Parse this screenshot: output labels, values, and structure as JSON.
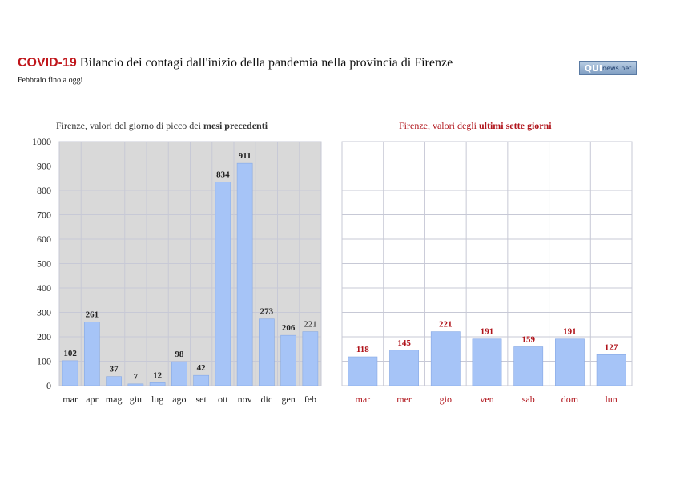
{
  "header": {
    "title_highlight": "COVID-19",
    "title_rest": "Bilancio dei contagi dall'inizio della pandemia nella provincia di Firenze",
    "subtitle": "Febbraio fino a oggi"
  },
  "logo": {
    "main": "QUI",
    "small": "news.net"
  },
  "colors": {
    "bar": "#a6c4f7",
    "bar_edge": "#86a8e4",
    "left_plot_bg": "#d9d9d9",
    "grid": "#c7c9d6",
    "red": "#b0131a"
  },
  "chart_data": [
    {
      "type": "bar",
      "title_prefix": "Firenze, valori del giorno di picco dei ",
      "title_bold": "mesi precedenti",
      "categories": [
        "mar",
        "apr",
        "mag",
        "giu",
        "lug",
        "ago",
        "set",
        "ott",
        "nov",
        "dic",
        "gen",
        "feb"
      ],
      "values": [
        102,
        261,
        37,
        7,
        12,
        98,
        42,
        834,
        911,
        273,
        206,
        221
      ],
      "labels": [
        "102",
        "261",
        "37",
        "7",
        "12",
        "98",
        "42",
        "834",
        "911",
        "273",
        "206",
        "221"
      ],
      "yticks": [
        "0",
        "100",
        "200",
        "300",
        "400",
        "500",
        "600",
        "700",
        "800",
        "900",
        "1000"
      ],
      "ylim": [
        0,
        1000
      ],
      "grid": true,
      "xlabel": "",
      "ylabel": ""
    },
    {
      "type": "bar",
      "title_prefix": "Firenze, valori degli ",
      "title_bold": "ultimi sette giorni",
      "categories": [
        "mar",
        "mer",
        "gio",
        "ven",
        "sab",
        "dom",
        "lun"
      ],
      "values": [
        118,
        145,
        221,
        191,
        159,
        191,
        127
      ],
      "labels": [
        "118",
        "145",
        "221",
        "191",
        "159",
        "191",
        "127"
      ],
      "ylim": [
        0,
        1000
      ],
      "grid": true,
      "xlabel": "",
      "ylabel": ""
    }
  ]
}
